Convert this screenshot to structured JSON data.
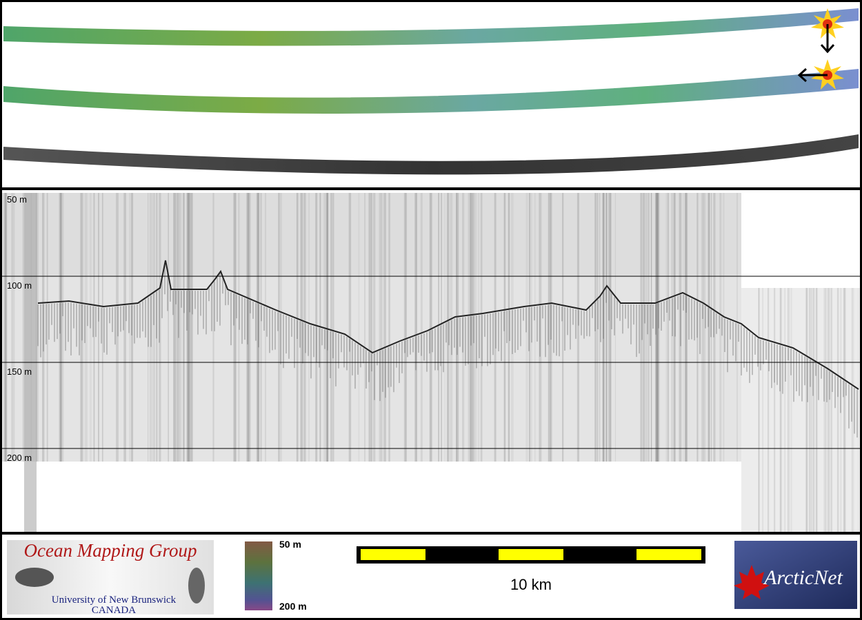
{
  "profile": {
    "depth_labels": [
      "50 m",
      "100 m",
      "150 m",
      "200 m"
    ]
  },
  "footer": {
    "group_logo": {
      "title": "Ocean Mapping Group",
      "university": "University of New Brunswick",
      "country": "CANADA"
    },
    "colorbar": {
      "top_label": "50 m",
      "bottom_label": "200 m"
    },
    "scale_bar": {
      "label": "10 km"
    },
    "partner_logo": {
      "name": "ArcticNet"
    }
  }
}
